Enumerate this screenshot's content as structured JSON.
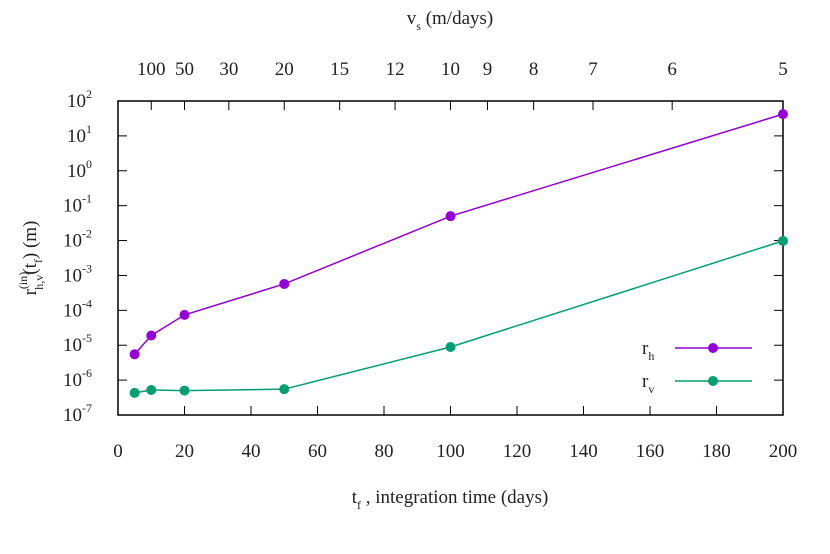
{
  "chart_data": {
    "type": "line",
    "yscale": "log",
    "ylabel": [
      "r",
      "(in)",
      "h,v",
      "(t",
      "f",
      ")  (m)"
    ],
    "xlabel": [
      "t",
      "f",
      " , integration time  (days)"
    ],
    "x2label": [
      "v",
      "s",
      "  (m/days)"
    ],
    "x": [
      5,
      10,
      20,
      50,
      100,
      200
    ],
    "series": [
      {
        "name": "r",
        "subscript": "h",
        "color": "#9400d3",
        "values": [
          5.5e-06,
          1.9e-05,
          7.4e-05,
          0.00057,
          0.05,
          42
        ]
      },
      {
        "name": "r",
        "subscript": "v",
        "color": "#009e73",
        "values": [
          4.3e-07,
          5.2e-07,
          5e-07,
          5.5e-07,
          8.9e-06,
          0.0098
        ]
      }
    ],
    "xlim": [
      0,
      200
    ],
    "xticks": [
      0,
      20,
      40,
      60,
      80,
      100,
      120,
      140,
      160,
      180,
      200
    ],
    "x2scale": "reciprocal",
    "x2lim": [
      null,
      5
    ],
    "x2ticks": [
      100,
      50,
      30,
      20,
      15,
      12,
      10,
      9,
      8,
      7,
      6,
      5
    ],
    "ylim": [
      1e-07,
      100
    ],
    "yticks": [
      {
        "value": 1e-07,
        "label": "10",
        "exponent": "-7"
      },
      {
        "value": 1e-06,
        "label": "10",
        "exponent": "-6"
      },
      {
        "value": 1e-05,
        "label": "10",
        "exponent": "-5"
      },
      {
        "value": 0.0001,
        "label": "10",
        "exponent": "-4"
      },
      {
        "value": 0.001,
        "label": "10",
        "exponent": "-3"
      },
      {
        "value": 0.01,
        "label": "10",
        "exponent": "-2"
      },
      {
        "value": 0.1,
        "label": "10",
        "exponent": "-1"
      },
      {
        "value": 1,
        "label": "10",
        "exponent": "0"
      },
      {
        "value": 10,
        "label": "10",
        "exponent": "1"
      },
      {
        "value": 100,
        "label": "10",
        "exponent": "2"
      }
    ],
    "legend": "bottom-right"
  }
}
